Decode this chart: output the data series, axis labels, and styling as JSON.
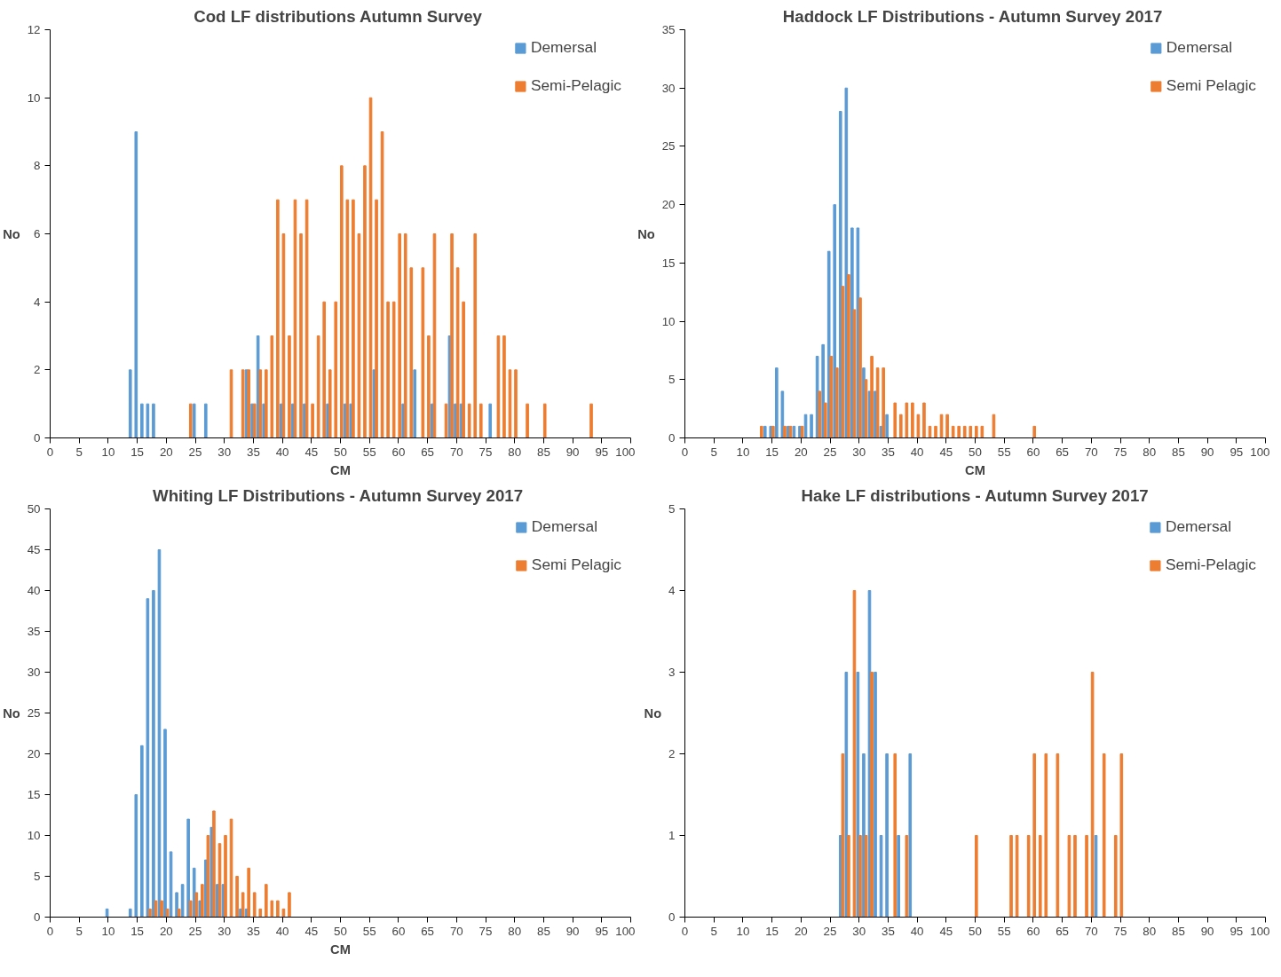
{
  "chart_data": [
    {
      "type": "bar",
      "title": "Cod LF distributions  Autumn Survey",
      "xlabel": "CM",
      "ylabel": "No",
      "xlim": [
        0,
        100
      ],
      "xticks": [
        0,
        5,
        10,
        15,
        20,
        25,
        30,
        35,
        40,
        45,
        50,
        55,
        60,
        65,
        70,
        75,
        80,
        85,
        90,
        95,
        100
      ],
      "ylim": [
        0,
        12
      ],
      "yticks": [
        0,
        2,
        4,
        6,
        8,
        10,
        12
      ],
      "grid": false,
      "legend": "top right",
      "series": [
        {
          "name": "Demersal",
          "color": "#5b9bd5",
          "x": [
            14,
            15,
            16,
            17,
            18,
            25,
            27,
            34,
            35,
            36,
            37,
            40,
            42,
            44,
            48,
            51,
            52,
            56,
            61,
            63,
            66,
            69,
            70,
            71,
            76
          ],
          "values": [
            2,
            9,
            1,
            1,
            1,
            1,
            1,
            2,
            1,
            3,
            1,
            1,
            1,
            1,
            1,
            1,
            1,
            2,
            1,
            2,
            1,
            3,
            1,
            1,
            1
          ]
        },
        {
          "name": "Semi-Pelagic",
          "color": "#ed7d31",
          "x": [
            24,
            31,
            33,
            34,
            35,
            36,
            37,
            38,
            39,
            40,
            41,
            42,
            43,
            44,
            45,
            46,
            47,
            48,
            49,
            50,
            51,
            52,
            53,
            54,
            55,
            56,
            57,
            58,
            59,
            60,
            61,
            62,
            64,
            65,
            66,
            68,
            69,
            70,
            71,
            72,
            73,
            74,
            77,
            78,
            79,
            80,
            82,
            85,
            93
          ],
          "values": [
            1,
            2,
            2,
            2,
            1,
            2,
            2,
            3,
            7,
            6,
            3,
            7,
            6,
            7,
            1,
            3,
            4,
            2,
            4,
            8,
            7,
            7,
            6,
            8,
            10,
            7,
            9,
            4,
            4,
            6,
            6,
            5,
            5,
            3,
            6,
            1,
            6,
            5,
            4,
            1,
            6,
            1,
            3,
            3,
            2,
            2,
            1,
            1,
            1
          ]
        }
      ]
    },
    {
      "type": "bar",
      "title": "Haddock LF Distributions  - Autumn Survey 2017",
      "xlabel": "CM",
      "ylabel": "No",
      "xlim": [
        0,
        100
      ],
      "xticks": [
        0,
        5,
        10,
        15,
        20,
        25,
        30,
        35,
        40,
        45,
        50,
        55,
        60,
        65,
        70,
        75,
        80,
        85,
        90,
        95,
        100
      ],
      "ylim": [
        0,
        35
      ],
      "yticks": [
        0,
        5,
        10,
        15,
        20,
        25,
        30,
        35
      ],
      "grid": false,
      "legend": "top right",
      "series": [
        {
          "name": "Demersal",
          "color": "#5b9bd5",
          "x": [
            14,
            15,
            16,
            17,
            18,
            19,
            20,
            21,
            22,
            23,
            24,
            25,
            26,
            27,
            28,
            29,
            30,
            31,
            32,
            33,
            34,
            35
          ],
          "values": [
            1,
            1,
            6,
            4,
            1,
            1,
            1,
            2,
            2,
            7,
            8,
            16,
            20,
            28,
            30,
            18,
            18,
            6,
            4,
            4,
            1,
            2
          ]
        },
        {
          "name": "Semi Pelagic",
          "color": "#ed7d31",
          "x": [
            13,
            15,
            17,
            18,
            20,
            23,
            24,
            25,
            26,
            27,
            28,
            29,
            30,
            31,
            32,
            33,
            34,
            36,
            37,
            38,
            39,
            40,
            41,
            42,
            43,
            44,
            45,
            46,
            47,
            48,
            49,
            50,
            51,
            53,
            60
          ],
          "values": [
            1,
            1,
            1,
            1,
            1,
            4,
            3,
            7,
            6,
            13,
            14,
            11,
            12,
            5,
            7,
            6,
            6,
            3,
            2,
            3,
            3,
            2,
            3,
            1,
            1,
            2,
            2,
            1,
            1,
            1,
            1,
            1,
            1,
            2,
            1
          ]
        }
      ]
    },
    {
      "type": "bar",
      "title": "Whiting LF Distributions  - Autumn Survey 2017",
      "xlabel": "CM",
      "ylabel": "No",
      "xlim": [
        0,
        100
      ],
      "xticks": [
        0,
        5,
        10,
        15,
        20,
        25,
        30,
        35,
        40,
        45,
        50,
        55,
        60,
        65,
        70,
        75,
        80,
        85,
        90,
        95,
        100
      ],
      "ylim": [
        0,
        50
      ],
      "yticks": [
        0,
        5,
        10,
        15,
        20,
        25,
        30,
        35,
        40,
        45,
        50
      ],
      "grid": false,
      "legend": "top right",
      "series": [
        {
          "name": "Demersal",
          "color": "#5b9bd5",
          "x": [
            10,
            14,
            15,
            16,
            17,
            18,
            19,
            20,
            21,
            22,
            23,
            24,
            25,
            26,
            27,
            28,
            29,
            30,
            33,
            34
          ],
          "values": [
            1,
            1,
            15,
            21,
            39,
            40,
            45,
            23,
            8,
            3,
            4,
            12,
            6,
            2,
            7,
            11,
            4,
            4,
            1,
            1
          ]
        },
        {
          "name": "Semi Pelagic",
          "color": "#ed7d31",
          "x": [
            17,
            18,
            19,
            20,
            22,
            24,
            25,
            26,
            27,
            28,
            29,
            30,
            31,
            32,
            33,
            34,
            35,
            36,
            37,
            38,
            39,
            40,
            41
          ],
          "values": [
            1,
            2,
            2,
            1,
            1,
            2,
            3,
            4,
            10,
            13,
            9,
            10,
            12,
            5,
            3,
            6,
            3,
            1,
            4,
            2,
            2,
            1,
            3
          ]
        }
      ]
    },
    {
      "type": "bar",
      "title": "Hake LF distributions - Autumn Survey 2017",
      "ylabel": "No",
      "xlim": [
        0,
        100
      ],
      "xticks": [
        0,
        5,
        10,
        15,
        20,
        25,
        30,
        35,
        40,
        45,
        50,
        55,
        60,
        65,
        70,
        75,
        80,
        85,
        90,
        95,
        100
      ],
      "ylim": [
        0,
        5
      ],
      "yticks": [
        0,
        1,
        2,
        3,
        4,
        5
      ],
      "grid": false,
      "legend": "top right",
      "series": [
        {
          "name": "Demersal",
          "color": "#5b9bd5",
          "x": [
            27,
            28,
            30,
            31,
            32,
            33,
            34,
            35,
            37,
            39,
            71
          ],
          "values": [
            1,
            3,
            3,
            2,
            4,
            3,
            1,
            2,
            1,
            2,
            1
          ]
        },
        {
          "name": "Semi-Pelagic",
          "color": "#ed7d31",
          "x": [
            27,
            28,
            29,
            30,
            31,
            32,
            36,
            38,
            50,
            56,
            57,
            59,
            60,
            61,
            62,
            64,
            66,
            67,
            69,
            70,
            72,
            74,
            75
          ],
          "values": [
            2,
            1,
            4,
            1,
            1,
            3,
            2,
            1,
            1,
            1,
            1,
            1,
            2,
            1,
            2,
            2,
            1,
            1,
            1,
            3,
            2,
            1,
            2
          ]
        }
      ]
    }
  ]
}
